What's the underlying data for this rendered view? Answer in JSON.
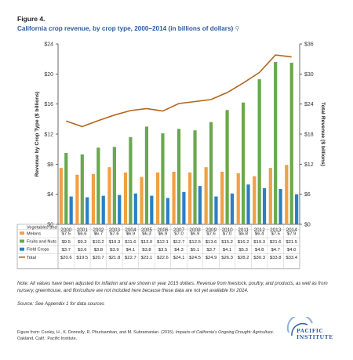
{
  "figure": {
    "label": "Figure 4.",
    "title": "California crop revenue, by crop type, 2000–2014 (in billions of dollars)",
    "title_icon": "magnifier-icon"
  },
  "chart_data": {
    "type": "bar",
    "title": "California crop revenue, by crop type, 2000–2014 (in billions of dollars)",
    "xlabel": "",
    "ylabel": "Revenue by Crop Type ($ billions)",
    "y2label": "Total Revenue ($ billions)",
    "ylim": [
      0,
      24
    ],
    "y2lim": [
      0,
      36
    ],
    "yticks": [
      "$0",
      "$4",
      "$8",
      "$12",
      "$16",
      "$20",
      "$24"
    ],
    "y2ticks": [
      "$0",
      "$6",
      "$12",
      "$18",
      "$24",
      "$30",
      "$36"
    ],
    "grid": false,
    "legend": "table-below",
    "categories": [
      "2000",
      "2001",
      "2002",
      "2003",
      "2004",
      "2005",
      "2006",
      "2007",
      "2008",
      "2009",
      "2010",
      "2011",
      "2012",
      "2013",
      "2014"
    ],
    "series": [
      {
        "name": "Vegetables and Melons",
        "kind": "bar",
        "color": "#f0a045",
        "axis": "left",
        "values": [
          7.5,
          6.6,
          6.7,
          7.6,
          6.9,
          6.3,
          6.9,
          7.0,
          6.9,
          7.6,
          7.0,
          6.8,
          6.4,
          7.5,
          7.9
        ],
        "labels": [
          "$7.5",
          "$6.6",
          "$6.7",
          "$7.6",
          "$6.9",
          "$6.3",
          "$6.9",
          "$7.0",
          "$6.9",
          "$7.6",
          "$7.0",
          "$6.8",
          "$6.4",
          "$7.5",
          "$7.9"
        ]
      },
      {
        "name": "Fruits and Nuts",
        "kind": "bar",
        "color": "#6aa84f",
        "axis": "left",
        "values": [
          9.5,
          9.3,
          10.2,
          10.3,
          11.6,
          13.0,
          12.1,
          12.7,
          12.5,
          13.6,
          15.2,
          16.2,
          19.3,
          21.6,
          21.5
        ],
        "labels": [
          "$9.5",
          "$9.3",
          "$10.2",
          "$10.3",
          "$11.6",
          "$13.0",
          "$12.1",
          "$12.7",
          "$12.5",
          "$13.6",
          "$15.2",
          "$16.2",
          "$19.3",
          "$21.6",
          "$21.5"
        ]
      },
      {
        "name": "Field Crops",
        "kind": "bar",
        "color": "#2b7fc4",
        "axis": "left",
        "values": [
          3.7,
          3.6,
          3.8,
          3.9,
          4.1,
          3.8,
          3.5,
          4.3,
          5.1,
          3.7,
          4.1,
          5.3,
          4.8,
          4.7,
          4.0
        ],
        "labels": [
          "$3.7",
          "$3.6",
          "$3.8",
          "$3.9",
          "$4.1",
          "$3.8",
          "$3.5",
          "$4.3",
          "$5.1",
          "$3.7",
          "$4.1",
          "$5.3",
          "$4.8",
          "$4.7",
          "$4.0"
        ]
      },
      {
        "name": "Total",
        "kind": "line",
        "color": "#b5651d",
        "axis": "right",
        "values": [
          20.6,
          19.5,
          20.7,
          21.8,
          22.7,
          23.1,
          22.6,
          24.1,
          24.5,
          24.9,
          26.3,
          28.2,
          30.3,
          33.8,
          33.4
        ],
        "labels": [
          "$20.6",
          "$19.5",
          "$20.7",
          "$21.8",
          "$22.7",
          "$23.1",
          "$22.6",
          "$24.1",
          "$24.5",
          "$24.9",
          "$26.3",
          "$28.2",
          "$30.3",
          "$33.8",
          "$33.4"
        ]
      }
    ]
  },
  "note": {
    "lead": "Note:",
    "text": "All values have been adjusted for inflation and are shown in year 2015 dollars. Revenue from livestock, poultry, and products, as well as from nursery, greenhouse, and floriculture are not included here because these data are not yet available for 2014."
  },
  "source": {
    "lead": "Source:",
    "text": "See Appendix 1 for data sources"
  },
  "credit": {
    "prefix": "Figure from: Cooley, H., K. Donnelly, R. Phurisamban, and M. Subramanian. (2015).",
    "title": "Impacts of California’s Ongoing Drought: Agriculture",
    "suffix": ". Oakland, Calif.: Pacific Institute."
  },
  "logo": {
    "line1": "PACIFIC",
    "line2": "INSTITUTE",
    "colors": {
      "primary": "#2c5fa0",
      "accent": "#8ab4dc"
    }
  }
}
